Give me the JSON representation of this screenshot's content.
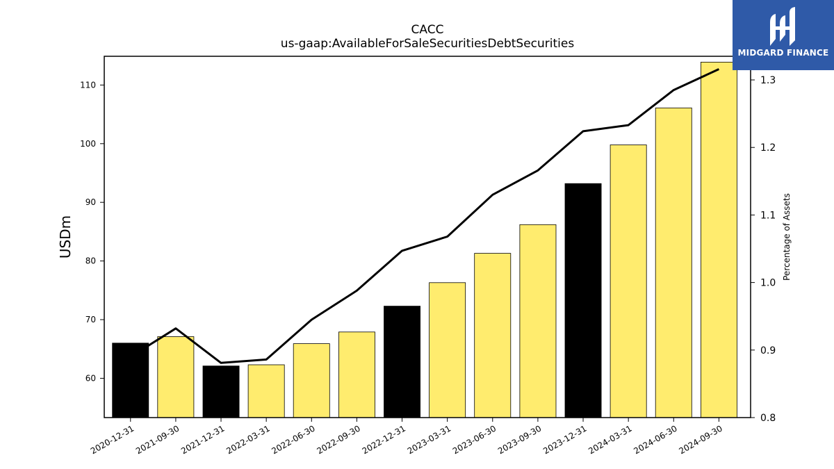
{
  "chart_data": {
    "type": "bar",
    "title": "CACC",
    "subtitle": "us-gaap:AvailableForSaleSecuritiesDebtSecurities",
    "ylabel": "USDm",
    "y2label": "Percentage of Assets",
    "ylim": [
      53.3,
      114.9
    ],
    "y2lim": [
      0.8,
      1.335
    ],
    "yticks": [
      60,
      70,
      80,
      90,
      100,
      110
    ],
    "y2ticks": [
      "0.8",
      "0.9",
      "1.0",
      "1.1",
      "1.2",
      "1.3"
    ],
    "categories": [
      "2020-12-31",
      "2021-09-30",
      "2021-12-31",
      "2022-03-31",
      "2022-06-30",
      "2022-09-30",
      "2022-12-31",
      "2023-03-31",
      "2023-06-30",
      "2023-09-30",
      "2023-12-31",
      "2024-03-31",
      "2024-06-30",
      "2024-09-30"
    ],
    "series": [
      {
        "type": "bar",
        "values": [
          66.0,
          67.1,
          62.1,
          62.3,
          65.9,
          67.9,
          72.3,
          76.3,
          81.3,
          86.2,
          93.2,
          99.8,
          106.1,
          113.9
        ]
      },
      {
        "type": "line",
        "axis": "right",
        "values": [
          0.89,
          0.932,
          0.881,
          0.886,
          0.945,
          0.988,
          1.047,
          1.068,
          1.13,
          1.166,
          1.224,
          1.233,
          1.285,
          1.316
        ]
      }
    ],
    "bar_colors": [
      "#000000",
      "#ffec6e",
      "#000000",
      "#ffec6e",
      "#ffec6e",
      "#ffec6e",
      "#000000",
      "#ffec6e",
      "#ffec6e",
      "#ffec6e",
      "#000000",
      "#ffec6e",
      "#ffec6e",
      "#ffec6e"
    ],
    "line_color": "#000000",
    "grid": false
  },
  "logo": {
    "text": "MIDGARD FINANCE",
    "background": "#2f5aa8"
  }
}
